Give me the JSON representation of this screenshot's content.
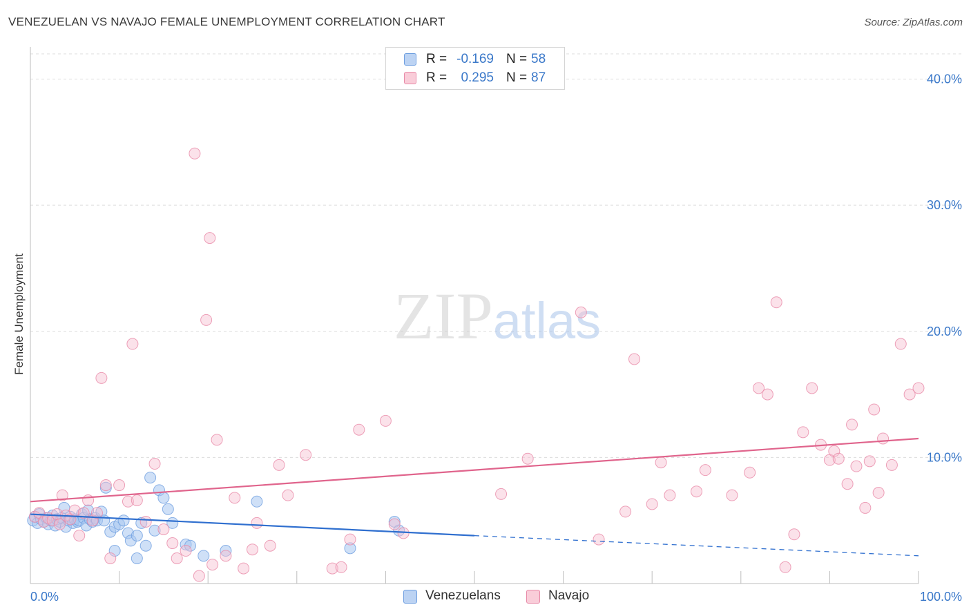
{
  "chart_data": {
    "type": "scatter",
    "title": "VENEZUELAN VS NAVAJO FEMALE UNEMPLOYMENT CORRELATION CHART",
    "source": "Source: ZipAtlas.com",
    "xlabel": "",
    "ylabel": "Female Unemployment",
    "xlim": [
      0,
      100
    ],
    "ylim": [
      0,
      42
    ],
    "x_tick_labels": [
      "0.0%",
      "100.0%"
    ],
    "y_ticks": [
      10,
      20,
      30,
      40
    ],
    "y_tick_labels": [
      "10.0%",
      "20.0%",
      "30.0%",
      "40.0%"
    ],
    "grid": true,
    "watermark": "ZIPatlas",
    "legend": {
      "position": "top-center",
      "entries": [
        {
          "r_label": "R =",
          "r_value": "-0.169",
          "n_label": "N =",
          "n_value": "58"
        },
        {
          "r_label": "R =",
          "r_value": "0.295",
          "n_label": "N =",
          "n_value": "87"
        }
      ]
    },
    "series": [
      {
        "name": "Venezuelans",
        "color": "#6f9fe0",
        "fill": "#a8c6f0",
        "trend_color": "#2f6fcf",
        "trend": {
          "x0": 0,
          "y0": 5.5,
          "x1": 50,
          "y1": 3.8,
          "dash_to_x": 100,
          "dash_to_y": 2.2
        },
        "points": [
          [
            0.3,
            5.0
          ],
          [
            0.5,
            5.3
          ],
          [
            0.8,
            4.8
          ],
          [
            1.0,
            5.5
          ],
          [
            1.2,
            5.1
          ],
          [
            1.5,
            4.9
          ],
          [
            1.8,
            5.2
          ],
          [
            2.0,
            4.7
          ],
          [
            2.3,
            5.0
          ],
          [
            2.5,
            5.4
          ],
          [
            2.8,
            4.6
          ],
          [
            3.0,
            5.1
          ],
          [
            3.3,
            4.9
          ],
          [
            3.5,
            5.2
          ],
          [
            3.8,
            6.0
          ],
          [
            4.0,
            4.5
          ],
          [
            4.3,
            5.0
          ],
          [
            4.5,
            5.3
          ],
          [
            4.8,
            4.8
          ],
          [
            5.0,
            5.1
          ],
          [
            5.3,
            4.9
          ],
          [
            5.5,
            5.0
          ],
          [
            5.8,
            5.5
          ],
          [
            6.0,
            5.2
          ],
          [
            6.3,
            4.6
          ],
          [
            6.5,
            5.8
          ],
          [
            6.7,
            5.1
          ],
          [
            7.0,
            4.9
          ],
          [
            7.3,
            5.2
          ],
          [
            7.5,
            5.0
          ],
          [
            8.0,
            5.7
          ],
          [
            8.3,
            5.0
          ],
          [
            8.5,
            7.6
          ],
          [
            9.0,
            4.1
          ],
          [
            9.5,
            4.5
          ],
          [
            10.0,
            4.7
          ],
          [
            10.5,
            5.0
          ],
          [
            11.0,
            4.0
          ],
          [
            11.3,
            3.4
          ],
          [
            12.0,
            3.8
          ],
          [
            12.5,
            4.8
          ],
          [
            13.0,
            3.0
          ],
          [
            14.0,
            4.2
          ],
          [
            14.5,
            7.4
          ],
          [
            15.0,
            6.8
          ],
          [
            15.5,
            5.9
          ],
          [
            16.0,
            4.8
          ],
          [
            17.5,
            3.1
          ],
          [
            18.0,
            3.0
          ],
          [
            19.5,
            2.2
          ],
          [
            22.0,
            2.6
          ],
          [
            25.5,
            6.5
          ],
          [
            36.0,
            2.8
          ],
          [
            41.0,
            4.9
          ],
          [
            41.5,
            4.2
          ],
          [
            13.5,
            8.4
          ],
          [
            12.0,
            2.0
          ],
          [
            9.5,
            2.6
          ]
        ]
      },
      {
        "name": "Navajo",
        "color": "#e88aa8",
        "fill": "#f7bfd0",
        "trend_color": "#e0648c",
        "trend": {
          "x0": 0,
          "y0": 6.5,
          "x1": 100,
          "y1": 11.5
        },
        "points": [
          [
            0.5,
            5.3
          ],
          [
            1.0,
            5.6
          ],
          [
            1.5,
            4.9
          ],
          [
            2.0,
            5.2
          ],
          [
            2.5,
            5.0
          ],
          [
            3.0,
            5.5
          ],
          [
            3.3,
            4.7
          ],
          [
            3.6,
            7.0
          ],
          [
            4.0,
            5.4
          ],
          [
            4.5,
            5.1
          ],
          [
            5.0,
            5.8
          ],
          [
            5.5,
            3.8
          ],
          [
            6.0,
            5.6
          ],
          [
            6.5,
            6.6
          ],
          [
            7.0,
            5.0
          ],
          [
            7.5,
            5.6
          ],
          [
            8.0,
            16.3
          ],
          [
            8.5,
            7.8
          ],
          [
            9.0,
            2.0
          ],
          [
            10.0,
            7.8
          ],
          [
            11.0,
            6.5
          ],
          [
            11.5,
            19.0
          ],
          [
            12.0,
            6.6
          ],
          [
            13.0,
            4.9
          ],
          [
            14.0,
            9.5
          ],
          [
            15.0,
            4.3
          ],
          [
            16.0,
            3.2
          ],
          [
            16.5,
            2.0
          ],
          [
            17.5,
            2.6
          ],
          [
            18.5,
            34.1
          ],
          [
            19.0,
            0.6
          ],
          [
            19.8,
            20.9
          ],
          [
            20.2,
            27.4
          ],
          [
            20.5,
            1.5
          ],
          [
            21.0,
            11.4
          ],
          [
            22.0,
            2.2
          ],
          [
            23.0,
            6.8
          ],
          [
            24.0,
            1.2
          ],
          [
            25.0,
            2.7
          ],
          [
            25.5,
            4.8
          ],
          [
            27.0,
            3.0
          ],
          [
            28.0,
            9.4
          ],
          [
            29.0,
            7.0
          ],
          [
            31.0,
            10.2
          ],
          [
            34.0,
            1.2
          ],
          [
            35.0,
            1.3
          ],
          [
            36.0,
            3.5
          ],
          [
            37.0,
            12.2
          ],
          [
            40.0,
            12.9
          ],
          [
            41.0,
            4.7
          ],
          [
            42.0,
            4.0
          ],
          [
            53.0,
            7.1
          ],
          [
            56.0,
            9.9
          ],
          [
            62.0,
            21.5
          ],
          [
            64.0,
            3.5
          ],
          [
            67.0,
            5.7
          ],
          [
            68.0,
            17.8
          ],
          [
            70.0,
            6.3
          ],
          [
            71.0,
            9.6
          ],
          [
            72.0,
            7.0
          ],
          [
            75.0,
            7.3
          ],
          [
            76.0,
            9.0
          ],
          [
            79.0,
            7.0
          ],
          [
            81.0,
            8.8
          ],
          [
            82.0,
            15.5
          ],
          [
            83.0,
            15.0
          ],
          [
            84.0,
            22.3
          ],
          [
            85.0,
            1.3
          ],
          [
            86.0,
            3.9
          ],
          [
            87.0,
            12.0
          ],
          [
            88.0,
            15.5
          ],
          [
            89.0,
            11.0
          ],
          [
            90.0,
            9.8
          ],
          [
            90.5,
            10.5
          ],
          [
            91.0,
            9.9
          ],
          [
            92.0,
            7.9
          ],
          [
            92.5,
            12.6
          ],
          [
            93.0,
            9.3
          ],
          [
            94.0,
            6.0
          ],
          [
            94.5,
            9.7
          ],
          [
            95.0,
            13.8
          ],
          [
            95.5,
            7.2
          ],
          [
            96.0,
            11.5
          ],
          [
            97.0,
            9.4
          ],
          [
            98.0,
            19.0
          ],
          [
            99.0,
            15.0
          ],
          [
            100.0,
            15.5
          ]
        ]
      }
    ]
  }
}
